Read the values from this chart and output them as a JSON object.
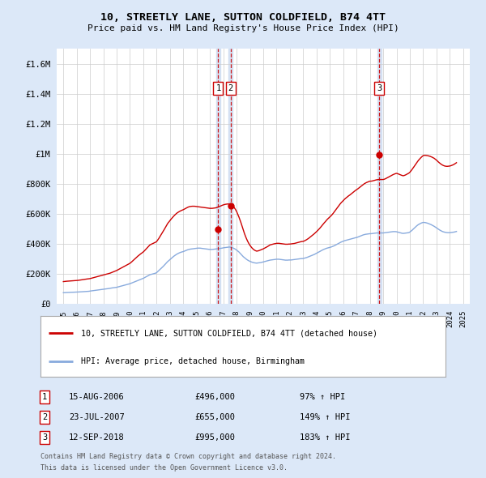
{
  "title": "10, STREETLY LANE, SUTTON COLDFIELD, B74 4TT",
  "subtitle": "Price paid vs. HM Land Registry's House Price Index (HPI)",
  "legend_line1": "10, STREETLY LANE, SUTTON COLDFIELD, B74 4TT (detached house)",
  "legend_line2": "HPI: Average price, detached house, Birmingham",
  "footer1": "Contains HM Land Registry data © Crown copyright and database right 2024.",
  "footer2": "This data is licensed under the Open Government Licence v3.0.",
  "sale_color": "#cc0000",
  "hpi_color": "#88aadd",
  "dashed_color": "#cc0000",
  "background_color": "#dce8f8",
  "plot_bg_color": "#ffffff",
  "ylim": [
    0,
    1700000
  ],
  "yticks": [
    0,
    200000,
    400000,
    600000,
    800000,
    1000000,
    1200000,
    1400000,
    1600000
  ],
  "ytick_labels": [
    "£0",
    "£200K",
    "£400K",
    "£600K",
    "£800K",
    "£1M",
    "£1.2M",
    "£1.4M",
    "£1.6M"
  ],
  "sale_dates": [
    2006.62,
    2007.56,
    2018.7
  ],
  "sale_prices": [
    496000,
    655000,
    995000
  ],
  "sale_labels": [
    "1",
    "2",
    "3"
  ],
  "sale_info": [
    {
      "label": "1",
      "date": "15-AUG-2006",
      "price": "£496,000",
      "hpi": "97% ↑ HPI"
    },
    {
      "label": "2",
      "date": "23-JUL-2007",
      "price": "£655,000",
      "hpi": "149% ↑ HPI"
    },
    {
      "label": "3",
      "date": "12-SEP-2018",
      "price": "£995,000",
      "hpi": "183% ↑ HPI"
    }
  ],
  "hpi_x": [
    1995.0,
    1995.083,
    1995.167,
    1995.25,
    1995.333,
    1995.417,
    1995.5,
    1995.583,
    1995.667,
    1995.75,
    1995.833,
    1995.917,
    1996.0,
    1996.083,
    1996.167,
    1996.25,
    1996.333,
    1996.417,
    1996.5,
    1996.583,
    1996.667,
    1996.75,
    1996.833,
    1996.917,
    1997.0,
    1997.083,
    1997.167,
    1997.25,
    1997.333,
    1997.417,
    1997.5,
    1997.583,
    1997.667,
    1997.75,
    1997.833,
    1997.917,
    1998.0,
    1998.083,
    1998.167,
    1998.25,
    1998.333,
    1998.417,
    1998.5,
    1998.583,
    1998.667,
    1998.75,
    1998.833,
    1998.917,
    1999.0,
    1999.083,
    1999.167,
    1999.25,
    1999.333,
    1999.417,
    1999.5,
    1999.583,
    1999.667,
    1999.75,
    1999.833,
    1999.917,
    2000.0,
    2000.083,
    2000.167,
    2000.25,
    2000.333,
    2000.417,
    2000.5,
    2000.583,
    2000.667,
    2000.75,
    2000.833,
    2000.917,
    2001.0,
    2001.083,
    2001.167,
    2001.25,
    2001.333,
    2001.417,
    2001.5,
    2001.583,
    2001.667,
    2001.75,
    2001.833,
    2001.917,
    2002.0,
    2002.083,
    2002.167,
    2002.25,
    2002.333,
    2002.417,
    2002.5,
    2002.583,
    2002.667,
    2002.75,
    2002.833,
    2002.917,
    2003.0,
    2003.083,
    2003.167,
    2003.25,
    2003.333,
    2003.417,
    2003.5,
    2003.583,
    2003.667,
    2003.75,
    2003.833,
    2003.917,
    2004.0,
    2004.083,
    2004.167,
    2004.25,
    2004.333,
    2004.417,
    2004.5,
    2004.583,
    2004.667,
    2004.75,
    2004.833,
    2004.917,
    2005.0,
    2005.083,
    2005.167,
    2005.25,
    2005.333,
    2005.417,
    2005.5,
    2005.583,
    2005.667,
    2005.75,
    2005.833,
    2005.917,
    2006.0,
    2006.083,
    2006.167,
    2006.25,
    2006.333,
    2006.417,
    2006.5,
    2006.583,
    2006.667,
    2006.75,
    2006.833,
    2006.917,
    2007.0,
    2007.083,
    2007.167,
    2007.25,
    2007.333,
    2007.417,
    2007.5,
    2007.583,
    2007.667,
    2007.75,
    2007.833,
    2007.917,
    2008.0,
    2008.083,
    2008.167,
    2008.25,
    2008.333,
    2008.417,
    2008.5,
    2008.583,
    2008.667,
    2008.75,
    2008.833,
    2008.917,
    2009.0,
    2009.083,
    2009.167,
    2009.25,
    2009.333,
    2009.417,
    2009.5,
    2009.583,
    2009.667,
    2009.75,
    2009.833,
    2009.917,
    2010.0,
    2010.083,
    2010.167,
    2010.25,
    2010.333,
    2010.417,
    2010.5,
    2010.583,
    2010.667,
    2010.75,
    2010.833,
    2010.917,
    2011.0,
    2011.083,
    2011.167,
    2011.25,
    2011.333,
    2011.417,
    2011.5,
    2011.583,
    2011.667,
    2011.75,
    2011.833,
    2011.917,
    2012.0,
    2012.083,
    2012.167,
    2012.25,
    2012.333,
    2012.417,
    2012.5,
    2012.583,
    2012.667,
    2012.75,
    2012.833,
    2012.917,
    2013.0,
    2013.083,
    2013.167,
    2013.25,
    2013.333,
    2013.417,
    2013.5,
    2013.583,
    2013.667,
    2013.75,
    2013.833,
    2013.917,
    2014.0,
    2014.083,
    2014.167,
    2014.25,
    2014.333,
    2014.417,
    2014.5,
    2014.583,
    2014.667,
    2014.75,
    2014.833,
    2014.917,
    2015.0,
    2015.083,
    2015.167,
    2015.25,
    2015.333,
    2015.417,
    2015.5,
    2015.583,
    2015.667,
    2015.75,
    2015.833,
    2015.917,
    2016.0,
    2016.083,
    2016.167,
    2016.25,
    2016.333,
    2016.417,
    2016.5,
    2016.583,
    2016.667,
    2016.75,
    2016.833,
    2016.917,
    2017.0,
    2017.083,
    2017.167,
    2017.25,
    2017.333,
    2017.417,
    2017.5,
    2017.583,
    2017.667,
    2017.75,
    2017.833,
    2017.917,
    2018.0,
    2018.083,
    2018.167,
    2018.25,
    2018.333,
    2018.417,
    2018.5,
    2018.583,
    2018.667,
    2018.75,
    2018.833,
    2018.917,
    2019.0,
    2019.083,
    2019.167,
    2019.25,
    2019.333,
    2019.417,
    2019.5,
    2019.583,
    2019.667,
    2019.75,
    2019.833,
    2019.917,
    2020.0,
    2020.083,
    2020.167,
    2020.25,
    2020.333,
    2020.417,
    2020.5,
    2020.583,
    2020.667,
    2020.75,
    2020.833,
    2020.917,
    2021.0,
    2021.083,
    2021.167,
    2021.25,
    2021.333,
    2021.417,
    2021.5,
    2021.583,
    2021.667,
    2021.75,
    2021.833,
    2021.917,
    2022.0,
    2022.083,
    2022.167,
    2022.25,
    2022.333,
    2022.417,
    2022.5,
    2022.583,
    2022.667,
    2022.75,
    2022.833,
    2022.917,
    2023.0,
    2023.083,
    2023.167,
    2023.25,
    2023.333,
    2023.417,
    2023.5,
    2023.583,
    2023.667,
    2023.75,
    2023.833,
    2023.917,
    2024.0,
    2024.083,
    2024.167,
    2024.25,
    2024.333,
    2024.417,
    2024.5
  ],
  "hpi_y": [
    74000,
    74500,
    75000,
    75200,
    75500,
    75800,
    76000,
    76300,
    76600,
    76900,
    77200,
    77500,
    78000,
    78500,
    79000,
    79500,
    80000,
    80500,
    81000,
    81500,
    82000,
    82500,
    83000,
    83500,
    85000,
    86000,
    87000,
    88000,
    89000,
    90000,
    91000,
    92000,
    93000,
    94000,
    95000,
    96000,
    97000,
    98000,
    99000,
    100000,
    101000,
    102000,
    103500,
    105000,
    106000,
    107000,
    108000,
    109000,
    110000,
    112000,
    114000,
    116000,
    118000,
    120000,
    122000,
    124000,
    126000,
    128000,
    130000,
    132000,
    134000,
    137000,
    140000,
    143000,
    146000,
    149000,
    152000,
    155000,
    158000,
    161000,
    164000,
    167000,
    170000,
    174000,
    178000,
    182000,
    186000,
    190000,
    194000,
    196000,
    198000,
    200000,
    202000,
    204000,
    208000,
    215000,
    222000,
    229000,
    236000,
    243000,
    250000,
    258000,
    266000,
    274000,
    282000,
    288000,
    295000,
    301000,
    308000,
    314000,
    320000,
    325000,
    330000,
    334000,
    338000,
    341000,
    344000,
    346000,
    348000,
    351000,
    354000,
    357000,
    360000,
    362000,
    364000,
    365000,
    366000,
    367000,
    368000,
    369000,
    370000,
    371000,
    371000,
    371000,
    370000,
    369000,
    368000,
    367000,
    366000,
    365000,
    364000,
    363000,
    362000,
    362000,
    362000,
    363000,
    364000,
    365000,
    366000,
    367000,
    368000,
    369000,
    370000,
    371000,
    373000,
    374000,
    375000,
    376000,
    377000,
    378000,
    378000,
    376000,
    374000,
    371000,
    368000,
    363000,
    358000,
    352000,
    346000,
    338000,
    330000,
    322000,
    314000,
    308000,
    302000,
    296000,
    291000,
    287000,
    283000,
    280000,
    277000,
    275000,
    273000,
    272000,
    271000,
    272000,
    273000,
    274000,
    275000,
    277000,
    279000,
    281000,
    283000,
    285000,
    287000,
    289000,
    291000,
    292000,
    293000,
    294000,
    295000,
    296000,
    297000,
    297000,
    297000,
    296000,
    295000,
    294000,
    293000,
    292000,
    291000,
    291000,
    291000,
    292000,
    292000,
    292000,
    293000,
    294000,
    295000,
    296000,
    297000,
    298000,
    299000,
    300000,
    301000,
    301000,
    302000,
    304000,
    306000,
    308000,
    311000,
    314000,
    317000,
    320000,
    323000,
    326000,
    329000,
    333000,
    337000,
    341000,
    345000,
    349000,
    353000,
    357000,
    361000,
    364000,
    367000,
    370000,
    372000,
    374000,
    376000,
    378000,
    381000,
    384000,
    387000,
    391000,
    395000,
    399000,
    403000,
    407000,
    411000,
    414000,
    417000,
    420000,
    422000,
    424000,
    426000,
    428000,
    430000,
    432000,
    434000,
    436000,
    438000,
    440000,
    442000,
    444000,
    447000,
    450000,
    453000,
    456000,
    459000,
    461000,
    463000,
    464000,
    465000,
    466000,
    467000,
    467000,
    468000,
    469000,
    470000,
    471000,
    472000,
    472000,
    472000,
    472000,
    472000,
    472000,
    472000,
    473000,
    474000,
    475000,
    476000,
    477000,
    478000,
    479000,
    480000,
    481000,
    481000,
    481000,
    480000,
    478000,
    476000,
    474000,
    472000,
    470000,
    469000,
    470000,
    471000,
    472000,
    473000,
    474000,
    478000,
    484000,
    490000,
    497000,
    504000,
    511000,
    518000,
    524000,
    529000,
    533000,
    537000,
    540000,
    542000,
    542000,
    541000,
    539000,
    537000,
    534000,
    531000,
    528000,
    524000,
    520000,
    516000,
    511000,
    506000,
    501000,
    496000,
    491000,
    487000,
    483000,
    480000,
    478000,
    476000,
    475000,
    474000,
    474000,
    474000,
    475000,
    476000,
    477000,
    478000,
    480000,
    482000
  ],
  "red_x": [
    1995.0,
    1995.083,
    1995.167,
    1995.25,
    1995.333,
    1995.417,
    1995.5,
    1995.583,
    1995.667,
    1995.75,
    1995.833,
    1995.917,
    1996.0,
    1996.083,
    1996.167,
    1996.25,
    1996.333,
    1996.417,
    1996.5,
    1996.583,
    1996.667,
    1996.75,
    1996.833,
    1996.917,
    1997.0,
    1997.083,
    1997.167,
    1997.25,
    1997.333,
    1997.417,
    1997.5,
    1997.583,
    1997.667,
    1997.75,
    1997.833,
    1997.917,
    1998.0,
    1998.083,
    1998.167,
    1998.25,
    1998.333,
    1998.417,
    1998.5,
    1998.583,
    1998.667,
    1998.75,
    1998.833,
    1998.917,
    1999.0,
    1999.083,
    1999.167,
    1999.25,
    1999.333,
    1999.417,
    1999.5,
    1999.583,
    1999.667,
    1999.75,
    1999.833,
    1999.917,
    2000.0,
    2000.083,
    2000.167,
    2000.25,
    2000.333,
    2000.417,
    2000.5,
    2000.583,
    2000.667,
    2000.75,
    2000.833,
    2000.917,
    2001.0,
    2001.083,
    2001.167,
    2001.25,
    2001.333,
    2001.417,
    2001.5,
    2001.583,
    2001.667,
    2001.75,
    2001.833,
    2001.917,
    2002.0,
    2002.083,
    2002.167,
    2002.25,
    2002.333,
    2002.417,
    2002.5,
    2002.583,
    2002.667,
    2002.75,
    2002.833,
    2002.917,
    2003.0,
    2003.083,
    2003.167,
    2003.25,
    2003.333,
    2003.417,
    2003.5,
    2003.583,
    2003.667,
    2003.75,
    2003.833,
    2003.917,
    2004.0,
    2004.083,
    2004.167,
    2004.25,
    2004.333,
    2004.417,
    2004.5,
    2004.583,
    2004.667,
    2004.75,
    2004.833,
    2004.917,
    2005.0,
    2005.083,
    2005.167,
    2005.25,
    2005.333,
    2005.417,
    2005.5,
    2005.583,
    2005.667,
    2005.75,
    2005.833,
    2005.917,
    2006.0,
    2006.083,
    2006.167,
    2006.25,
    2006.333,
    2006.417,
    2006.5,
    2006.583,
    2006.667,
    2006.75,
    2006.833,
    2006.917,
    2007.0,
    2007.083,
    2007.167,
    2007.25,
    2007.333,
    2007.417,
    2007.5,
    2007.583,
    2007.667,
    2007.75,
    2007.833,
    2007.917,
    2008.0,
    2008.083,
    2008.167,
    2008.25,
    2008.333,
    2008.417,
    2008.5,
    2008.583,
    2008.667,
    2008.75,
    2008.833,
    2008.917,
    2009.0,
    2009.083,
    2009.167,
    2009.25,
    2009.333,
    2009.417,
    2009.5,
    2009.583,
    2009.667,
    2009.75,
    2009.833,
    2009.917,
    2010.0,
    2010.083,
    2010.167,
    2010.25,
    2010.333,
    2010.417,
    2010.5,
    2010.583,
    2010.667,
    2010.75,
    2010.833,
    2010.917,
    2011.0,
    2011.083,
    2011.167,
    2011.25,
    2011.333,
    2011.417,
    2011.5,
    2011.583,
    2011.667,
    2011.75,
    2011.833,
    2011.917,
    2012.0,
    2012.083,
    2012.167,
    2012.25,
    2012.333,
    2012.417,
    2012.5,
    2012.583,
    2012.667,
    2012.75,
    2012.833,
    2012.917,
    2013.0,
    2013.083,
    2013.167,
    2013.25,
    2013.333,
    2013.417,
    2013.5,
    2013.583,
    2013.667,
    2013.75,
    2013.833,
    2013.917,
    2014.0,
    2014.083,
    2014.167,
    2014.25,
    2014.333,
    2014.417,
    2014.5,
    2014.583,
    2014.667,
    2014.75,
    2014.833,
    2014.917,
    2015.0,
    2015.083,
    2015.167,
    2015.25,
    2015.333,
    2015.417,
    2015.5,
    2015.583,
    2015.667,
    2015.75,
    2015.833,
    2015.917,
    2016.0,
    2016.083,
    2016.167,
    2016.25,
    2016.333,
    2016.417,
    2016.5,
    2016.583,
    2016.667,
    2016.75,
    2016.833,
    2016.917,
    2017.0,
    2017.083,
    2017.167,
    2017.25,
    2017.333,
    2017.417,
    2017.5,
    2017.583,
    2017.667,
    2017.75,
    2017.833,
    2017.917,
    2018.0,
    2018.083,
    2018.167,
    2018.25,
    2018.333,
    2018.417,
    2018.5,
    2018.583,
    2018.667,
    2018.75,
    2018.833,
    2018.917,
    2019.0,
    2019.083,
    2019.167,
    2019.25,
    2019.333,
    2019.417,
    2019.5,
    2019.583,
    2019.667,
    2019.75,
    2019.833,
    2019.917,
    2020.0,
    2020.083,
    2020.167,
    2020.25,
    2020.333,
    2020.417,
    2020.5,
    2020.583,
    2020.667,
    2020.75,
    2020.833,
    2020.917,
    2021.0,
    2021.083,
    2021.167,
    2021.25,
    2021.333,
    2021.417,
    2021.5,
    2021.583,
    2021.667,
    2021.75,
    2021.833,
    2021.917,
    2022.0,
    2022.083,
    2022.167,
    2022.25,
    2022.333,
    2022.417,
    2022.5,
    2022.583,
    2022.667,
    2022.75,
    2022.833,
    2022.917,
    2023.0,
    2023.083,
    2023.167,
    2023.25,
    2023.333,
    2023.417,
    2023.5,
    2023.583,
    2023.667,
    2023.75,
    2023.833,
    2023.917,
    2024.0,
    2024.083,
    2024.167,
    2024.25,
    2024.333,
    2024.417,
    2024.5
  ],
  "red_y": [
    148000,
    149000,
    150000,
    150500,
    151000,
    151500,
    152000,
    152500,
    153000,
    153500,
    154000,
    154500,
    155000,
    156000,
    157000,
    158000,
    159000,
    160000,
    161500,
    163000,
    164000,
    165000,
    166000,
    167000,
    168000,
    170000,
    172000,
    174000,
    176000,
    178000,
    180000,
    182000,
    184000,
    186000,
    188000,
    190000,
    192000,
    194000,
    196000,
    198000,
    200000,
    202000,
    204000,
    207000,
    210000,
    213000,
    216000,
    219000,
    222000,
    226000,
    230000,
    234000,
    238000,
    242000,
    246000,
    250000,
    254000,
    258000,
    262000,
    266000,
    270000,
    276000,
    283000,
    290000,
    297000,
    304000,
    311000,
    317000,
    323000,
    329000,
    335000,
    340000,
    346000,
    353000,
    361000,
    369000,
    377000,
    385000,
    393000,
    396000,
    400000,
    403000,
    407000,
    410000,
    415000,
    425000,
    436000,
    448000,
    460000,
    472000,
    484000,
    497000,
    510000,
    523000,
    536000,
    545000,
    555000,
    564000,
    573000,
    581000,
    589000,
    596000,
    603000,
    608000,
    613000,
    617000,
    621000,
    624000,
    627000,
    631000,
    635000,
    639000,
    643000,
    646000,
    648000,
    649000,
    650000,
    650000,
    650000,
    649000,
    648000,
    647000,
    646000,
    645000,
    644000,
    643000,
    642000,
    641000,
    640000,
    639000,
    638000,
    637000,
    636000,
    636000,
    636000,
    637000,
    638000,
    639000,
    641000,
    644000,
    647000,
    650000,
    653000,
    656000,
    659000,
    661000,
    663000,
    664000,
    665000,
    665000,
    664000,
    660000,
    655000,
    648000,
    640000,
    628000,
    615000,
    598000,
    580000,
    560000,
    539000,
    516000,
    492000,
    470000,
    450000,
    432000,
    416000,
    402000,
    390000,
    380000,
    371000,
    364000,
    358000,
    354000,
    351000,
    352000,
    354000,
    357000,
    360000,
    363000,
    366000,
    370000,
    374000,
    378000,
    382000,
    387000,
    392000,
    394000,
    396000,
    398000,
    400000,
    401000,
    403000,
    403000,
    403000,
    402000,
    401000,
    400000,
    399000,
    398000,
    397000,
    397000,
    397000,
    398000,
    398000,
    399000,
    400000,
    401000,
    402000,
    404000,
    406000,
    408000,
    410000,
    412000,
    414000,
    415000,
    416000,
    419000,
    423000,
    427000,
    432000,
    437000,
    443000,
    449000,
    455000,
    461000,
    467000,
    474000,
    481000,
    488000,
    496000,
    504000,
    513000,
    522000,
    531000,
    540000,
    548000,
    557000,
    565000,
    572000,
    579000,
    586000,
    594000,
    603000,
    613000,
    623000,
    634000,
    644000,
    654000,
    663000,
    672000,
    680000,
    688000,
    695000,
    702000,
    708000,
    714000,
    720000,
    725000,
    731000,
    737000,
    743000,
    749000,
    755000,
    760000,
    765000,
    771000,
    777000,
    783000,
    789000,
    795000,
    800000,
    804000,
    808000,
    811000,
    814000,
    817000,
    817000,
    818000,
    820000,
    822000,
    824000,
    826000,
    827000,
    828000,
    828000,
    828000,
    828000,
    828000,
    830000,
    833000,
    837000,
    841000,
    845000,
    849000,
    853000,
    857000,
    861000,
    864000,
    867000,
    869000,
    867000,
    864000,
    861000,
    858000,
    855000,
    853000,
    855000,
    858000,
    862000,
    866000,
    870000,
    876000,
    885000,
    895000,
    905000,
    916000,
    927000,
    938000,
    948000,
    958000,
    966000,
    974000,
    981000,
    987000,
    989000,
    989000,
    988000,
    987000,
    985000,
    983000,
    980000,
    977000,
    973000,
    969000,
    963000,
    957000,
    950000,
    943000,
    937000,
    931000,
    926000,
    922000,
    919000,
    917000,
    916000,
    916000,
    917000,
    918000,
    920000,
    923000,
    926000,
    930000,
    935000,
    940000
  ],
  "xlim": [
    1994.5,
    2025.5
  ],
  "xticks": [
    1995,
    1996,
    1997,
    1998,
    1999,
    2000,
    2001,
    2002,
    2003,
    2004,
    2005,
    2006,
    2007,
    2008,
    2009,
    2010,
    2011,
    2012,
    2013,
    2014,
    2015,
    2016,
    2017,
    2018,
    2019,
    2020,
    2021,
    2022,
    2023,
    2024,
    2025
  ]
}
